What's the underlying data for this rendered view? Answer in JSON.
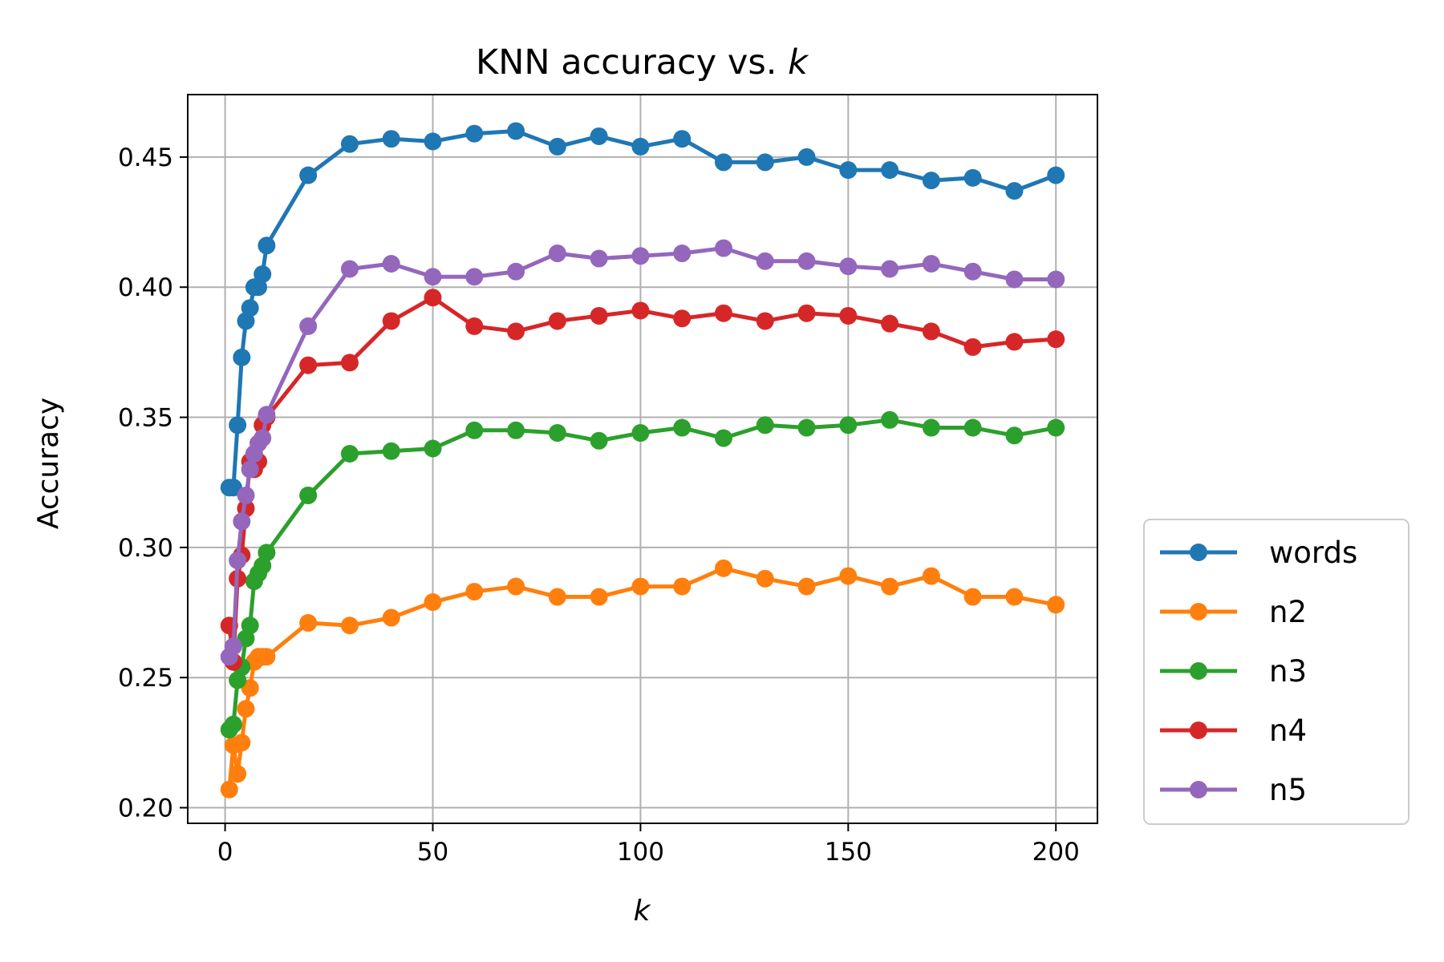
{
  "chart_data": {
    "type": "line",
    "title": "KNN accuracy vs. ",
    "title_k": "k",
    "xlabel": "k",
    "ylabel": "Accuracy",
    "xlim": [
      -9,
      210
    ],
    "ylim": [
      0.194,
      0.474
    ],
    "xticks": [
      0,
      50,
      100,
      150,
      200
    ],
    "yticks": [
      0.2,
      0.25,
      0.3,
      0.35,
      0.4,
      0.45
    ],
    "xtick_labels": [
      "0",
      "50",
      "100",
      "150",
      "200"
    ],
    "ytick_labels": [
      "0.20",
      "0.25",
      "0.30",
      "0.35",
      "0.40",
      "0.45"
    ],
    "grid": true,
    "legend_position": "outside-right",
    "x": [
      1,
      2,
      3,
      4,
      5,
      6,
      7,
      8,
      9,
      10,
      20,
      30,
      40,
      50,
      60,
      70,
      80,
      90,
      100,
      110,
      120,
      130,
      140,
      150,
      160,
      170,
      180,
      190,
      200
    ],
    "series": [
      {
        "name": "words",
        "color": "#1f77b4",
        "values": [
          0.323,
          0.323,
          0.347,
          0.373,
          0.387,
          0.392,
          0.4,
          0.4,
          0.405,
          0.416,
          0.443,
          0.455,
          0.457,
          0.456,
          0.459,
          0.46,
          0.454,
          0.458,
          0.454,
          0.457,
          0.448,
          0.448,
          0.45,
          0.445,
          0.445,
          0.441,
          0.442,
          0.437,
          0.443
        ]
      },
      {
        "name": "n2",
        "color": "#ff7f0e",
        "values": [
          0.207,
          0.224,
          0.213,
          0.225,
          0.238,
          0.246,
          0.256,
          0.258,
          0.258,
          0.258,
          0.271,
          0.27,
          0.273,
          0.279,
          0.283,
          0.285,
          0.281,
          0.281,
          0.285,
          0.285,
          0.292,
          0.288,
          0.285,
          0.289,
          0.285,
          0.289,
          0.281,
          0.281,
          0.278
        ]
      },
      {
        "name": "n3",
        "color": "#2ca02c",
        "values": [
          0.23,
          0.232,
          0.249,
          0.254,
          0.265,
          0.27,
          0.287,
          0.29,
          0.293,
          0.298,
          0.32,
          0.336,
          0.337,
          0.338,
          0.345,
          0.345,
          0.344,
          0.341,
          0.344,
          0.346,
          0.342,
          0.347,
          0.346,
          0.347,
          0.349,
          0.346,
          0.346,
          0.343,
          0.346
        ]
      },
      {
        "name": "n4",
        "color": "#d62728",
        "values": [
          0.27,
          0.256,
          0.288,
          0.297,
          0.315,
          0.333,
          0.33,
          0.333,
          0.347,
          0.35,
          0.37,
          0.371,
          0.387,
          0.396,
          0.385,
          0.383,
          0.387,
          0.389,
          0.391,
          0.388,
          0.39,
          0.387,
          0.39,
          0.389,
          0.386,
          0.383,
          0.377,
          0.379,
          0.38
        ]
      },
      {
        "name": "n5",
        "color": "#9467bd",
        "values": [
          0.258,
          0.262,
          0.295,
          0.31,
          0.32,
          0.33,
          0.336,
          0.34,
          0.342,
          0.351,
          0.385,
          0.407,
          0.409,
          0.404,
          0.404,
          0.406,
          0.413,
          0.411,
          0.412,
          0.413,
          0.415,
          0.41,
          0.41,
          0.408,
          0.407,
          0.409,
          0.406,
          0.403,
          0.403
        ]
      }
    ]
  }
}
